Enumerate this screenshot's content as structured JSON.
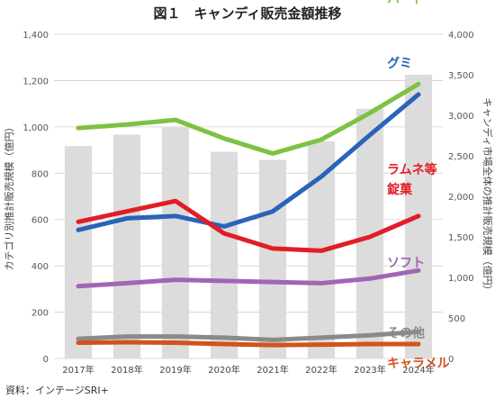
{
  "chart_data": {
    "type": "line",
    "title": "図１　キャンディ販売金額推移",
    "ylabel": "カテゴリ別推計販売規模（億円）",
    "ylabel_right": "キャンディ市場全体の推計販売規模（億円）",
    "source": "資料：インテージSRI+",
    "categories": [
      "2017年",
      "2018年",
      "2019年",
      "2020年",
      "2021年",
      "2022年",
      "2023年",
      "2024年"
    ],
    "ylim": [
      0,
      1400
    ],
    "yticks": [
      "0",
      "200",
      "400",
      "600",
      "800",
      "1,000",
      "1,200",
      "1,400"
    ],
    "ylim_right": [
      0,
      4000
    ],
    "yticks_right": [
      "0",
      "500",
      "1,000",
      "1,500",
      "2,000",
      "2,500",
      "3,000",
      "3,500",
      "4,000"
    ],
    "grid": true,
    "bars": {
      "axis": "right",
      "color": "#dcdcdc",
      "values": [
        2620,
        2760,
        2850,
        2550,
        2450,
        2680,
        3080,
        3500
      ]
    },
    "series": [
      {
        "name": "ハード",
        "color": "#7dc242",
        "values": [
          995,
          1010,
          1030,
          950,
          885,
          945,
          1060,
          1185
        ]
      },
      {
        "name": "グミ",
        "color": "#2a63b8",
        "values": [
          555,
          605,
          615,
          570,
          635,
          785,
          965,
          1140
        ]
      },
      {
        "name": "ラムネ等錠菓",
        "color": "#e21d25",
        "values": [
          590,
          635,
          680,
          540,
          475,
          465,
          525,
          615
        ]
      },
      {
        "name": "ソフト",
        "color": "#a066b4",
        "values": [
          312,
          325,
          340,
          335,
          330,
          325,
          345,
          380
        ]
      },
      {
        "name": "その他",
        "color": "#8a8a8a",
        "values": [
          85,
          95,
          95,
          90,
          80,
          90,
          100,
          115
        ]
      },
      {
        "name": "キャラメル",
        "color": "#d0531e",
        "values": [
          68,
          70,
          68,
          62,
          58,
          60,
          62,
          62
        ]
      }
    ]
  }
}
